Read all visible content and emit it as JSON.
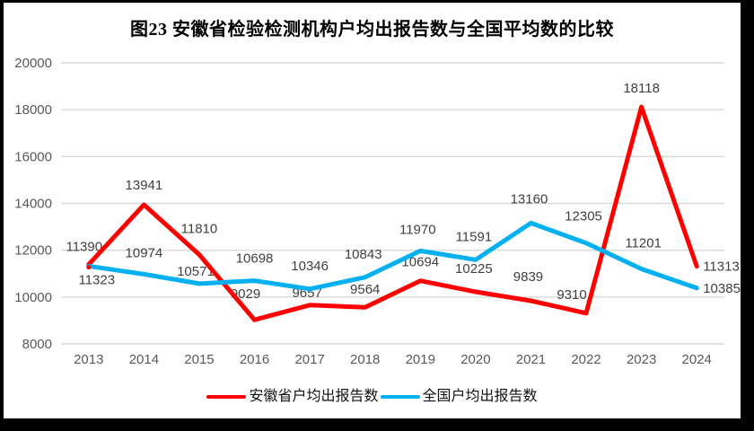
{
  "chart_data": {
    "type": "line",
    "title": "图23 安徽省检验检测机构户均出报告数与全国平均数的比较",
    "categories": [
      "2013",
      "2014",
      "2015",
      "2016",
      "2017",
      "2018",
      "2019",
      "2020",
      "2021",
      "2022",
      "2023",
      "2024"
    ],
    "series": [
      {
        "name": "安徽省户均出报告数",
        "color": "#FF0000",
        "values": [
          11390,
          13941,
          11810,
          9029,
          9657,
          9564,
          10694,
          10225,
          9839,
          9310,
          18118,
          11313
        ],
        "label_offsets": [
          [
            -5,
            -15
          ],
          [
            0,
            -17
          ],
          [
            0,
            -24
          ],
          [
            -10,
            -24
          ],
          [
            -3,
            -9
          ],
          [
            0,
            -15
          ],
          [
            0,
            -16
          ],
          [
            -2,
            -21
          ],
          [
            -3,
            -22
          ],
          [
            -16,
            -16
          ],
          [
            0,
            -16
          ],
          [
            7,
            5,
            "start"
          ]
        ]
      },
      {
        "name": "全国户均出报告数",
        "color": "#00B0F0",
        "values": [
          11323,
          10974,
          10571,
          10698,
          10346,
          10843,
          11970,
          11591,
          13160,
          12305,
          11201,
          10385
        ],
        "label_offsets": [
          [
            9,
            20
          ],
          [
            0,
            -19
          ],
          [
            -4,
            -9
          ],
          [
            0,
            -20
          ],
          [
            0,
            -21
          ],
          [
            -2,
            -21
          ],
          [
            -3,
            -19
          ],
          [
            -2,
            -21
          ],
          [
            -2,
            -22
          ],
          [
            -3,
            -25
          ],
          [
            2,
            -24
          ],
          [
            7,
            5,
            "start"
          ]
        ]
      }
    ],
    "ylim": [
      8000,
      20000
    ],
    "ytick_step": 2000,
    "yticks": [
      "8000",
      "10000",
      "12000",
      "14000",
      "16000",
      "18000",
      "20000"
    ],
    "grid": "horizontal",
    "legend_position": "bottom-center",
    "line_width": 5,
    "colors": {
      "gridline": "#D9D9D9",
      "axis_label": "#595959",
      "data_label": "#404040",
      "title": "#000000",
      "frame_border": "#000000",
      "background": "#FFFFFF"
    }
  }
}
